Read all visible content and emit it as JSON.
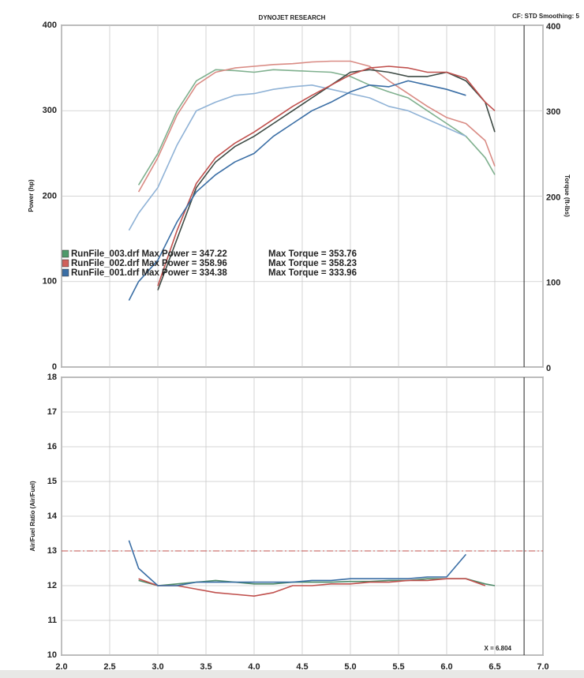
{
  "chart_data": [
    {
      "type": "line",
      "title": "DYNOJET RESEARCH",
      "subtitle": "CF: STD  Smoothing: 5",
      "ylabel": "Power (hp)",
      "y2label": "Torque (ft-lbs)",
      "xlim": [
        2.0,
        7.0
      ],
      "ylim": [
        0,
        400
      ],
      "yticks": [
        0,
        100,
        200,
        300,
        400
      ],
      "y2lim": [
        0,
        400
      ],
      "y2ticks": [
        0,
        100,
        200,
        300,
        400
      ],
      "grid": true,
      "x": [
        2.7,
        2.8,
        3.0,
        3.2,
        3.4,
        3.6,
        3.8,
        4.0,
        4.2,
        4.4,
        4.6,
        4.8,
        5.0,
        5.2,
        5.4,
        5.6,
        5.8,
        6.0,
        6.2,
        6.4,
        6.5
      ],
      "series": [
        {
          "color": "#7fb08e",
          "values": [
            null,
            213,
            250,
            300,
            335,
            348,
            347,
            345,
            348,
            347,
            346,
            345,
            340,
            330,
            322,
            315,
            300,
            285,
            270,
            245,
            225
          ]
        },
        {
          "color": "#d98b84",
          "values": [
            null,
            205,
            245,
            295,
            330,
            345,
            350,
            352,
            354,
            355,
            357,
            358,
            358,
            352,
            335,
            320,
            305,
            292,
            285,
            265,
            235
          ]
        },
        {
          "color": "#8fb2d6",
          "values": [
            160,
            180,
            210,
            260,
            300,
            310,
            318,
            320,
            325,
            328,
            330,
            325,
            320,
            315,
            305,
            300,
            290,
            280,
            270,
            null,
            null
          ]
        },
        {
          "color": "#3d4a44",
          "axis": "y2",
          "values": [
            null,
            null,
            90,
            150,
            210,
            240,
            258,
            270,
            285,
            300,
            315,
            330,
            345,
            348,
            345,
            340,
            340,
            345,
            335,
            310,
            275
          ]
        },
        {
          "color": "#c0504d",
          "axis": "y2",
          "values": [
            null,
            null,
            95,
            160,
            215,
            245,
            262,
            275,
            290,
            305,
            318,
            330,
            342,
            350,
            352,
            350,
            345,
            345,
            338,
            310,
            300
          ]
        },
        {
          "color": "#3a6ea5",
          "axis": "y2",
          "values": [
            78,
            100,
            125,
            170,
            205,
            225,
            240,
            250,
            270,
            285,
            300,
            310,
            322,
            330,
            328,
            335,
            330,
            325,
            318,
            null,
            null
          ]
        }
      ],
      "legend": [
        {
          "color": "#4e9a6a",
          "power": "RunFile_003.drf Max Power = 347.22",
          "torque": "Max Torque = 353.76"
        },
        {
          "color": "#d0605a",
          "power": "RunFile_002.drf Max Power = 358.96",
          "torque": "Max Torque = 358.23"
        },
        {
          "color": "#3a6ea5",
          "power": "RunFile_001.drf Max Power = 334.38",
          "torque": "Max Torque = 333.96"
        }
      ],
      "cursor_x": 6.804
    },
    {
      "type": "line",
      "ylabel": "Air/Fuel Ratio (Air/Fuel)",
      "xlim": [
        2.0,
        7.0
      ],
      "xticks": [
        {
          "value": 2,
          "label": "2.0"
        },
        2.5,
        {
          "value": 3,
          "label": "3.0"
        },
        3.5,
        {
          "value": 4,
          "label": "4.0"
        },
        4.5,
        {
          "value": 5,
          "label": "5.0"
        },
        5.5,
        {
          "value": 6,
          "label": "6.0"
        },
        6.5,
        {
          "value": 7,
          "label": "7.0"
        }
      ],
      "ylim": [
        10,
        18
      ],
      "yticks": [
        10,
        11,
        12,
        13,
        14,
        15,
        16,
        17,
        18
      ],
      "grid": true,
      "x": [
        2.7,
        2.8,
        3.0,
        3.2,
        3.4,
        3.6,
        3.8,
        4.0,
        4.2,
        4.4,
        4.6,
        4.8,
        5.0,
        5.2,
        5.4,
        5.6,
        5.8,
        6.0,
        6.2,
        6.4,
        6.5
      ],
      "series": [
        {
          "color": "#4e8a68",
          "values": [
            null,
            12.15,
            12.0,
            12.05,
            12.1,
            12.15,
            12.1,
            12.05,
            12.05,
            12.1,
            12.1,
            12.1,
            12.12,
            12.12,
            12.15,
            12.15,
            12.2,
            12.2,
            12.2,
            12.05,
            12.0
          ]
        },
        {
          "color": "#c0504d",
          "values": [
            null,
            12.2,
            12.0,
            12.0,
            11.9,
            11.8,
            11.75,
            11.7,
            11.8,
            12.0,
            12.0,
            12.05,
            12.05,
            12.1,
            12.1,
            12.15,
            12.15,
            12.2,
            12.2,
            12.0,
            null
          ]
        },
        {
          "color": "#3a6ea5",
          "values": [
            13.3,
            12.5,
            12.0,
            12.0,
            12.1,
            12.1,
            12.1,
            12.1,
            12.1,
            12.1,
            12.15,
            12.15,
            12.2,
            12.2,
            12.2,
            12.2,
            12.25,
            12.25,
            12.9,
            null,
            null
          ]
        }
      ],
      "reference_line": 13,
      "cursor_x": 6.804,
      "annotation": "X = 6.804"
    }
  ]
}
